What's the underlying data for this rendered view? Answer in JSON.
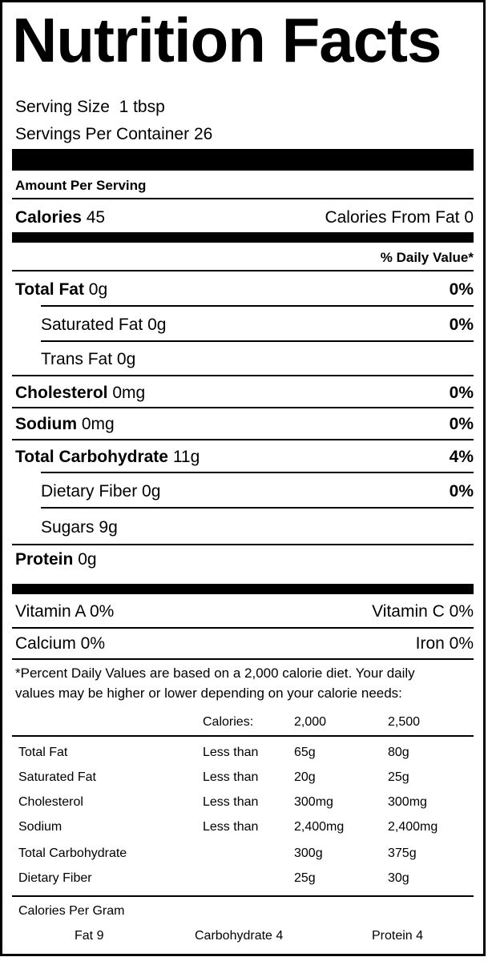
{
  "title": "Nutrition Facts",
  "serving_size_label": "Serving Size",
  "serving_size_value": "1 tbsp",
  "servings_label": "Servings Per Container",
  "servings_value": "26",
  "amount_per_serving": "Amount Per Serving",
  "calories_label": "Calories",
  "calories_value": "45",
  "calories_from_fat_label": "Calories From Fat",
  "calories_from_fat_value": "0",
  "daily_value_header": "% Daily Value*",
  "nutrients": [
    {
      "name": "Total Fat",
      "amount": "0g",
      "dv": "0%"
    },
    {
      "name": "Saturated Fat",
      "amount": "0g",
      "dv": "0%"
    },
    {
      "name": "Trans Fat",
      "amount": "0g",
      "dv": ""
    },
    {
      "name": "Cholesterol",
      "amount": "0mg",
      "dv": "0%"
    },
    {
      "name": "Sodium",
      "amount": "0mg",
      "dv": "0%"
    },
    {
      "name": "Total Carbohydrate",
      "amount": "11g",
      "dv": "4%"
    },
    {
      "name": "Dietary Fiber",
      "amount": "0g",
      "dv": "0%"
    },
    {
      "name": "Sugars",
      "amount": "9g",
      "dv": ""
    },
    {
      "name": "Protein",
      "amount": "0g",
      "dv": ""
    }
  ],
  "vitamins": [
    {
      "left": "Vitamin A 0%",
      "right": "Vitamin C 0%"
    },
    {
      "left": "Calcium 0%",
      "right": "Iron 0%"
    }
  ],
  "footnote_line1": "*Percent Daily Values are based on a 2,000 calorie diet. Your daily",
  "footnote_line2": "values may be higher or lower depending on your calorie needs:",
  "dv_table": {
    "header": [
      "",
      "Calories:",
      "2,000",
      "2,500"
    ],
    "rows": [
      [
        "Total Fat",
        "Less than",
        "65g",
        "80g"
      ],
      [
        "Saturated Fat",
        "Less than",
        "20g",
        "25g"
      ],
      [
        "Cholesterol",
        "Less than",
        "300mg",
        "300mg"
      ],
      [
        "Sodium",
        "Less than",
        "2,400mg",
        "2,400mg"
      ],
      [
        "Total Carbohydrate",
        "",
        "300g",
        "375g"
      ],
      [
        "Dietary Fiber",
        "",
        "25g",
        "30g"
      ]
    ]
  },
  "calories_per_gram_label": "Calories Per Gram",
  "calories_per_gram": [
    "Fat 9",
    "Carbohydrate 4",
    "Protein 4"
  ]
}
